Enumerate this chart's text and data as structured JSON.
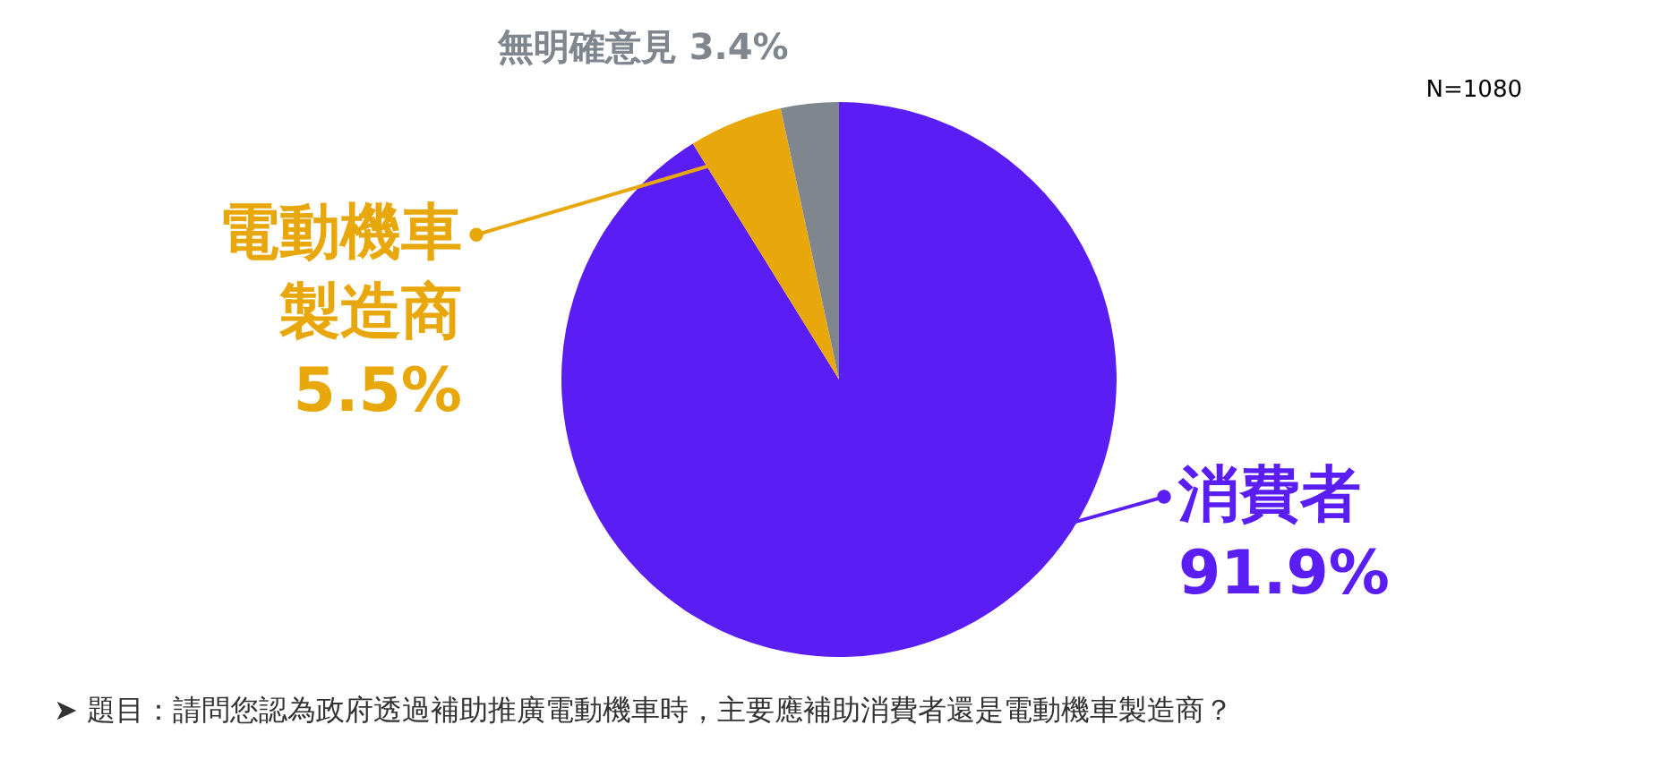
{
  "chart_data": {
    "type": "pie",
    "categories": [
      "消費者",
      "電動機車製造商",
      "無明確意見"
    ],
    "values": [
      91.9,
      5.5,
      3.4
    ],
    "colors": [
      "#5a1ef5",
      "#e8a80c",
      "#7f868e"
    ],
    "value_labels": [
      "91.9%",
      "5.5%",
      "3.4%"
    ],
    "annotations": [
      "N=1080",
      "➤ 題目：請問您認為政府透過補助推廣電動機車時，主要應補助消費者還是電動機車製造商？"
    ]
  }
}
